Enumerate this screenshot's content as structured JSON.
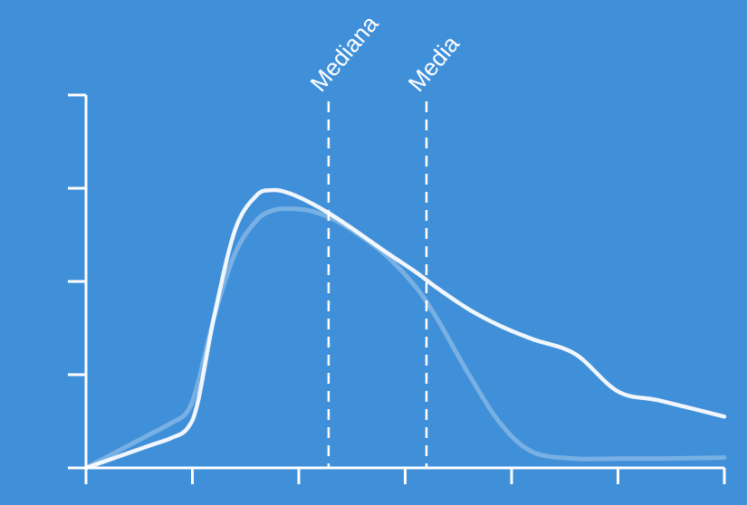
{
  "chart_data": {
    "type": "line",
    "title": "",
    "xlabel": "",
    "ylabel": "",
    "xlim": [
      0,
      6
    ],
    "ylim": [
      0,
      4
    ],
    "x_ticks": [
      0,
      1,
      2,
      3,
      4,
      5,
      6
    ],
    "y_ticks": [
      0,
      1,
      2,
      3,
      4
    ],
    "grid": false,
    "colors": {
      "background": "#3F8FD9",
      "foreground": "#FFFFFF"
    },
    "series": [
      {
        "style": "faded",
        "x": [
          0,
          0.3,
          0.6,
          0.8,
          0.95,
          1.05,
          1.2,
          1.4,
          1.6,
          1.75,
          1.9,
          2.1,
          2.3,
          2.5,
          2.8,
          3.1,
          3.3,
          3.6,
          3.9,
          4.2,
          4.6,
          5.0,
          5.4,
          6.0
        ],
        "y": [
          0,
          0.18,
          0.36,
          0.48,
          0.6,
          0.9,
          1.6,
          2.3,
          2.65,
          2.76,
          2.78,
          2.76,
          2.68,
          2.55,
          2.3,
          1.94,
          1.6,
          1.0,
          0.47,
          0.17,
          0.1,
          0.1,
          0.1,
          0.11
        ]
      },
      {
        "style": "solid",
        "x": [
          0,
          0.3,
          0.6,
          0.8,
          0.95,
          1.05,
          1.2,
          1.4,
          1.6,
          1.75,
          1.9,
          2.1,
          2.3,
          2.5,
          2.8,
          3.1,
          3.3,
          3.6,
          3.9,
          4.2,
          4.6,
          5.0,
          5.4,
          6.0
        ],
        "y": [
          0,
          0.12,
          0.24,
          0.32,
          0.42,
          0.7,
          1.6,
          2.55,
          2.92,
          2.98,
          2.95,
          2.85,
          2.72,
          2.57,
          2.33,
          2.1,
          1.93,
          1.7,
          1.52,
          1.38,
          1.22,
          0.82,
          0.72,
          0.55
        ]
      }
    ],
    "markers": [
      {
        "label": "Mediana",
        "x": 2.28
      },
      {
        "label": "Media",
        "x": 3.2
      }
    ]
  }
}
